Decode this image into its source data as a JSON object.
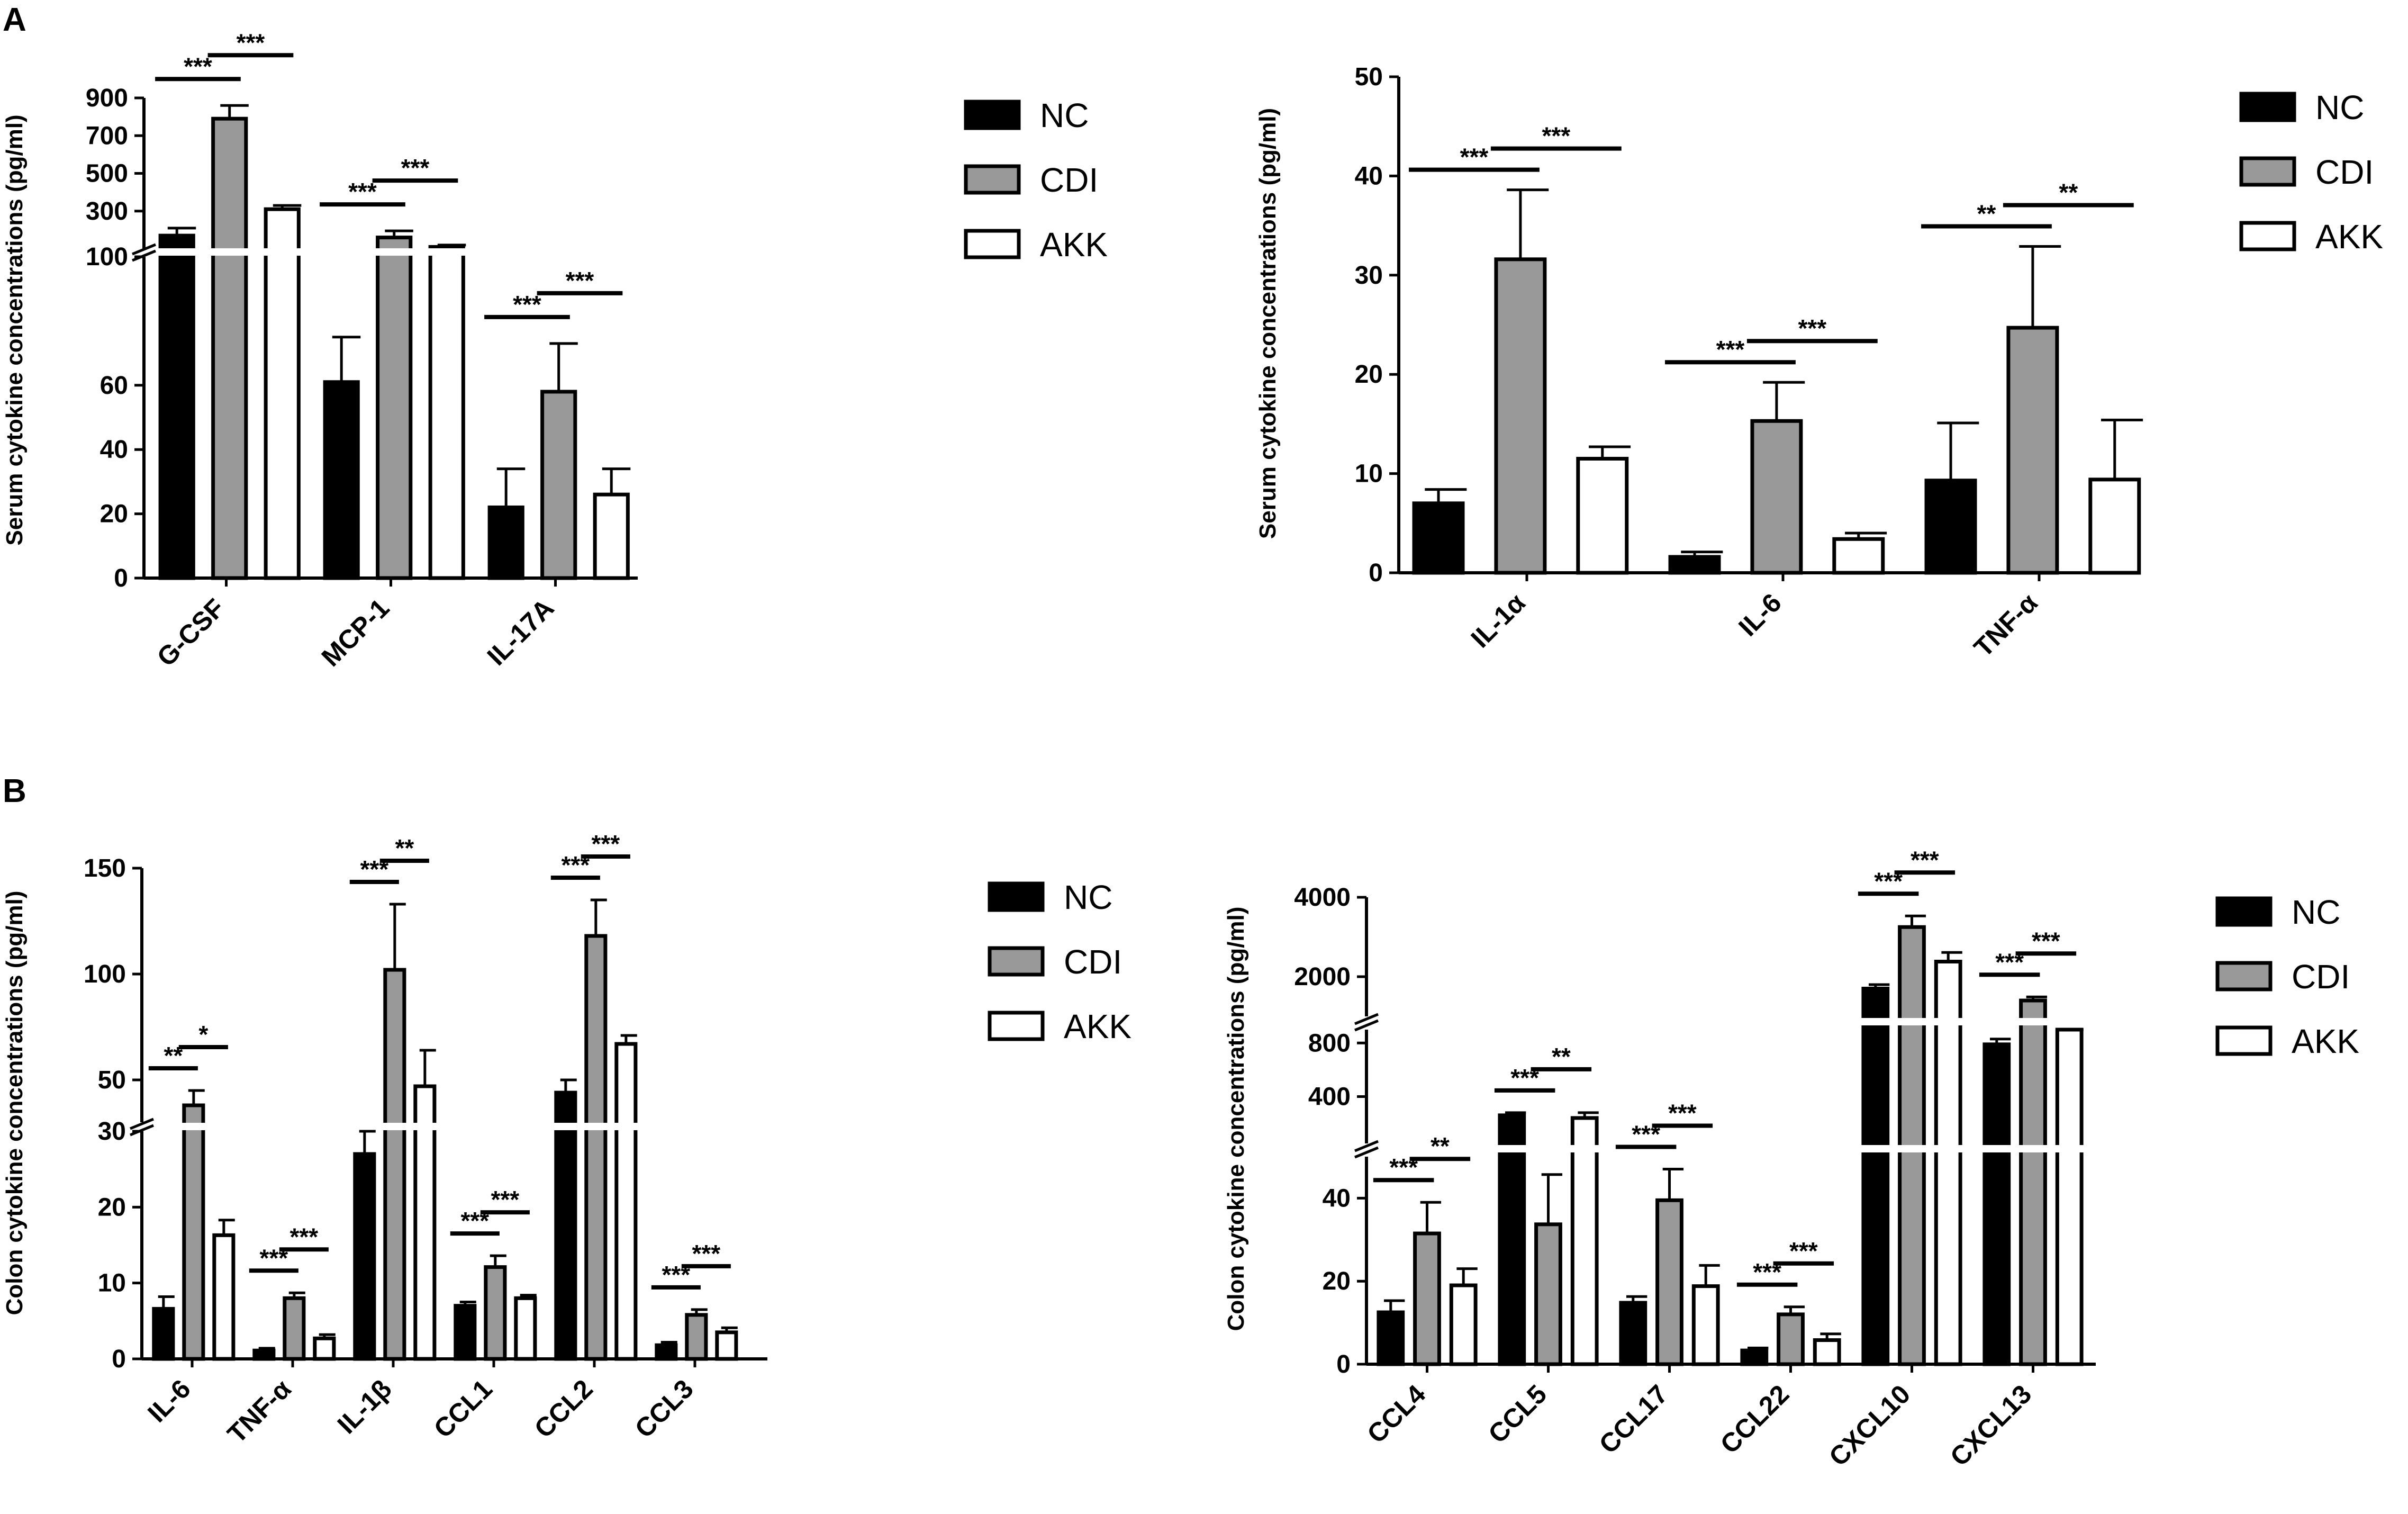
{
  "panel_labels": [
    "A",
    "B"
  ],
  "legend": [
    {
      "name": "NC",
      "color": "#000000"
    },
    {
      "name": "CDI",
      "color": "#999999"
    },
    {
      "name": "AKK",
      "color": "#ffffff"
    }
  ],
  "chart_data": [
    {
      "type": "bar",
      "panel": "A",
      "ylabel": "Serum cytokine concentrations (pg/ml)",
      "categories": [
        "G-CSF",
        "MCP-1",
        "IL-17A"
      ],
      "series": [
        {
          "name": "NC",
          "values": [
            170,
            61,
            22
          ],
          "errors": [
            40,
            14,
            12
          ]
        },
        {
          "name": "CDI",
          "values": [
            790,
            160,
            58
          ],
          "errors": [
            70,
            35,
            15
          ]
        },
        {
          "name": "AKK",
          "values": [
            310,
            110,
            26
          ],
          "errors": [
            20,
            10,
            8
          ]
        }
      ],
      "broken_axis": {
        "lower_range": [
          0,
          100
        ],
        "upper_range": [
          100,
          900
        ]
      },
      "yticks_lower": [
        0,
        20,
        40,
        60,
        100
      ],
      "yticks_upper": [
        300,
        500,
        700,
        900
      ],
      "significance": [
        {
          "category": "G-CSF",
          "pair": [
            "NC",
            "CDI"
          ],
          "label": "***"
        },
        {
          "category": "G-CSF",
          "pair": [
            "CDI",
            "AKK"
          ],
          "label": "***"
        },
        {
          "category": "MCP-1",
          "pair": [
            "NC",
            "CDI"
          ],
          "label": "***"
        },
        {
          "category": "MCP-1",
          "pair": [
            "CDI",
            "AKK"
          ],
          "label": "***"
        },
        {
          "category": "IL-17A",
          "pair": [
            "NC",
            "CDI"
          ],
          "label": "***"
        },
        {
          "category": "IL-17A",
          "pair": [
            "CDI",
            "AKK"
          ],
          "label": "***"
        }
      ]
    },
    {
      "type": "bar",
      "panel": "A",
      "ylabel": "Serum cytokine concentrations (pg/ml)",
      "categories": [
        "IL-1α",
        "IL-6",
        "TNF-α"
      ],
      "series": [
        {
          "name": "NC",
          "values": [
            7.0,
            1.6,
            9.3
          ],
          "errors": [
            1.4,
            0.5,
            5.8
          ]
        },
        {
          "name": "CDI",
          "values": [
            31.6,
            15.3,
            24.7
          ],
          "errors": [
            7.0,
            3.9,
            8.2
          ]
        },
        {
          "name": "AKK",
          "values": [
            11.5,
            3.4,
            9.4
          ],
          "errors": [
            1.2,
            0.6,
            6.0
          ]
        }
      ],
      "ylim": [
        0,
        50
      ],
      "yticks": [
        0,
        10,
        20,
        30,
        40,
        50
      ],
      "significance": [
        {
          "category": "IL-1α",
          "pair": [
            "NC",
            "CDI"
          ],
          "label": "***"
        },
        {
          "category": "IL-1α",
          "pair": [
            "CDI",
            "AKK"
          ],
          "label": "***"
        },
        {
          "category": "IL-6",
          "pair": [
            "NC",
            "CDI"
          ],
          "label": "***"
        },
        {
          "category": "IL-6",
          "pair": [
            "CDI",
            "AKK"
          ],
          "label": "***"
        },
        {
          "category": "TNF-α",
          "pair": [
            "NC",
            "CDI"
          ],
          "label": "**"
        },
        {
          "category": "TNF-α",
          "pair": [
            "CDI",
            "AKK"
          ],
          "label": "**"
        }
      ]
    },
    {
      "type": "bar",
      "panel": "B",
      "ylabel": "Colon cytokine concentrations (pg/ml)",
      "categories": [
        "IL-6",
        "TNF-α",
        "IL-1β",
        "CCL1",
        "CCL2",
        "CCL3"
      ],
      "series": [
        {
          "name": "NC",
          "values": [
            6.6,
            1.1,
            27,
            7.0,
            44,
            1.8
          ],
          "errors": [
            1.6,
            0.3,
            3,
            0.5,
            6,
            0.4
          ]
        },
        {
          "name": "CDI",
          "values": [
            38,
            8.0,
            102,
            12.1,
            118,
            5.8
          ],
          "errors": [
            7,
            0.7,
            31,
            1.5,
            17,
            0.7
          ]
        },
        {
          "name": "AKK",
          "values": [
            16.3,
            2.7,
            47,
            8.0,
            67,
            3.5
          ],
          "errors": [
            2.0,
            0.5,
            17,
            0.4,
            4,
            0.6
          ]
        }
      ],
      "broken_axis": {
        "lower_range": [
          0,
          30
        ],
        "upper_range": [
          30,
          150
        ]
      },
      "yticks_lower": [
        0,
        10,
        20,
        30
      ],
      "yticks_upper": [
        50,
        100,
        150
      ],
      "significance": [
        {
          "category": "IL-6",
          "pair": [
            "NC",
            "CDI"
          ],
          "label": "**"
        },
        {
          "category": "IL-6",
          "pair": [
            "CDI",
            "AKK"
          ],
          "label": "*"
        },
        {
          "category": "TNF-α",
          "pair": [
            "NC",
            "CDI"
          ],
          "label": "***"
        },
        {
          "category": "TNF-α",
          "pair": [
            "CDI",
            "AKK"
          ],
          "label": "***"
        },
        {
          "category": "IL-1β",
          "pair": [
            "NC",
            "CDI"
          ],
          "label": "***"
        },
        {
          "category": "IL-1β",
          "pair": [
            "CDI",
            "AKK"
          ],
          "label": "**"
        },
        {
          "category": "CCL1",
          "pair": [
            "NC",
            "CDI"
          ],
          "label": "***"
        },
        {
          "category": "CCL1",
          "pair": [
            "CDI",
            "AKK"
          ],
          "label": "***"
        },
        {
          "category": "CCL2",
          "pair": [
            "NC",
            "CDI"
          ],
          "label": "***"
        },
        {
          "category": "CCL2",
          "pair": [
            "CDI",
            "AKK"
          ],
          "label": "***"
        },
        {
          "category": "CCL3",
          "pair": [
            "NC",
            "CDI"
          ],
          "label": "***"
        },
        {
          "category": "CCL3",
          "pair": [
            "CDI",
            "AKK"
          ],
          "label": "***"
        }
      ]
    },
    {
      "type": "bar",
      "panel": "B",
      "ylabel": "Colon cytokine concentrations (pg/ml)",
      "categories": [
        "CCL4",
        "CCL5",
        "CCL17",
        "CCL22",
        "CXCL10",
        "CXCL13"
      ],
      "series": [
        {
          "name": "NC",
          "values": [
            12.5,
            260,
            14.8,
            3.3,
            1700,
            790
          ],
          "errors": [
            2.8,
            20,
            1.5,
            0.6,
            100,
            40
          ]
        },
        {
          "name": "CDI",
          "values": [
            31.5,
            33.7,
            39.5,
            12.0,
            3250,
            1400
          ],
          "errors": [
            7.5,
            12,
            7.5,
            1.8,
            280,
            90
          ]
        },
        {
          "name": "AKK",
          "values": [
            19.0,
            240,
            18.8,
            5.8,
            2380,
            950
          ],
          "errors": [
            4.0,
            40,
            5.0,
            1.5,
            230,
            20
          ]
        }
      ],
      "broken_axis": {
        "lower_range": [
          0,
          50
        ],
        "segments": [
          [
            50,
            900
          ],
          [
            1000,
            4000
          ]
        ]
      },
      "yticks_lower": [
        0,
        20,
        40
      ],
      "yticks_mid": [
        400,
        800
      ],
      "yticks_upper": [
        2000,
        4000
      ],
      "significance": [
        {
          "category": "CCL4",
          "pair": [
            "NC",
            "CDI"
          ],
          "label": "***"
        },
        {
          "category": "CCL4",
          "pair": [
            "CDI",
            "AKK"
          ],
          "label": "**"
        },
        {
          "category": "CCL5",
          "pair": [
            "NC",
            "CDI"
          ],
          "label": "***"
        },
        {
          "category": "CCL5",
          "pair": [
            "CDI",
            "AKK"
          ],
          "label": "**"
        },
        {
          "category": "CCL17",
          "pair": [
            "NC",
            "CDI"
          ],
          "label": "***"
        },
        {
          "category": "CCL17",
          "pair": [
            "CDI",
            "AKK"
          ],
          "label": "***"
        },
        {
          "category": "CCL22",
          "pair": [
            "NC",
            "CDI"
          ],
          "label": "***"
        },
        {
          "category": "CCL22",
          "pair": [
            "CDI",
            "AKK"
          ],
          "label": "***"
        },
        {
          "category": "CXCL10",
          "pair": [
            "NC",
            "CDI"
          ],
          "label": "***"
        },
        {
          "category": "CXCL10",
          "pair": [
            "CDI",
            "AKK"
          ],
          "label": "***"
        },
        {
          "category": "CXCL13",
          "pair": [
            "NC",
            "CDI"
          ],
          "label": "***"
        },
        {
          "category": "CXCL13",
          "pair": [
            "CDI",
            "AKK"
          ],
          "label": "***"
        }
      ]
    }
  ]
}
